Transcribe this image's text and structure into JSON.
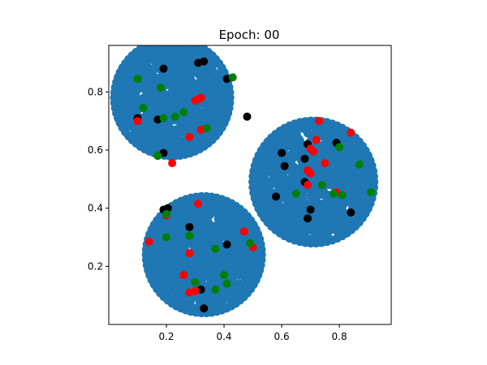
{
  "chart_data": {
    "type": "scatter",
    "title": "Epoch: 00",
    "xlabel": "",
    "ylabel": "",
    "xlim": [
      0.0,
      0.98
    ],
    "ylim": [
      0.0,
      0.96
    ],
    "xticks": [
      0.2,
      0.4,
      0.6,
      0.8
    ],
    "yticks": [
      0.2,
      0.4,
      0.6,
      0.8
    ],
    "xtick_labels": [
      "0.2",
      "0.4",
      "0.6",
      "0.8"
    ],
    "ytick_labels": [
      "0.2",
      "0.4",
      "0.6",
      "0.8"
    ],
    "grid": false,
    "legend": "none",
    "clusters": [
      {
        "center": [
          0.22,
          0.78
        ],
        "radius": 0.2
      },
      {
        "center": [
          0.71,
          0.49
        ],
        "radius": 0.21
      },
      {
        "center": [
          0.33,
          0.24
        ],
        "radius": 0.2
      }
    ],
    "series": [
      {
        "color": "#1f77b4",
        "marker_size": "large"
      },
      {
        "color": "#000000",
        "points": [
          [
            0.19,
            0.88
          ],
          [
            0.31,
            0.9
          ],
          [
            0.33,
            0.905
          ],
          [
            0.41,
            0.845
          ],
          [
            0.1,
            0.71
          ],
          [
            0.17,
            0.705
          ],
          [
            0.48,
            0.715
          ],
          [
            0.19,
            0.59
          ],
          [
            0.58,
            0.44
          ],
          [
            0.6,
            0.59
          ],
          [
            0.61,
            0.545
          ],
          [
            0.68,
            0.57
          ],
          [
            0.69,
            0.62
          ],
          [
            0.79,
            0.625
          ],
          [
            0.68,
            0.49
          ],
          [
            0.7,
            0.395
          ],
          [
            0.69,
            0.365
          ],
          [
            0.84,
            0.385
          ],
          [
            0.19,
            0.395
          ],
          [
            0.205,
            0.4
          ],
          [
            0.28,
            0.335
          ],
          [
            0.41,
            0.275
          ],
          [
            0.32,
            0.12
          ],
          [
            0.33,
            0.055
          ]
        ]
      },
      {
        "color": "#ff0000",
        "points": [
          [
            0.31,
            0.775
          ],
          [
            0.32,
            0.78
          ],
          [
            0.3,
            0.77
          ],
          [
            0.1,
            0.7
          ],
          [
            0.28,
            0.645
          ],
          [
            0.32,
            0.67
          ],
          [
            0.22,
            0.555
          ],
          [
            0.73,
            0.7
          ],
          [
            0.84,
            0.66
          ],
          [
            0.72,
            0.635
          ],
          [
            0.7,
            0.605
          ],
          [
            0.71,
            0.595
          ],
          [
            0.69,
            0.53
          ],
          [
            0.75,
            0.555
          ],
          [
            0.7,
            0.52
          ],
          [
            0.69,
            0.48
          ],
          [
            0.79,
            0.455
          ],
          [
            0.31,
            0.415
          ],
          [
            0.2,
            0.375
          ],
          [
            0.14,
            0.285
          ],
          [
            0.28,
            0.245
          ],
          [
            0.47,
            0.32
          ],
          [
            0.5,
            0.265
          ],
          [
            0.26,
            0.17
          ],
          [
            0.28,
            0.11
          ],
          [
            0.3,
            0.115
          ]
        ]
      },
      {
        "color": "#008000",
        "points": [
          [
            0.1,
            0.845
          ],
          [
            0.43,
            0.85
          ],
          [
            0.18,
            0.815
          ],
          [
            0.12,
            0.745
          ],
          [
            0.19,
            0.71
          ],
          [
            0.26,
            0.73
          ],
          [
            0.23,
            0.715
          ],
          [
            0.34,
            0.675
          ],
          [
            0.17,
            0.58
          ],
          [
            0.8,
            0.61
          ],
          [
            0.87,
            0.55
          ],
          [
            0.74,
            0.48
          ],
          [
            0.78,
            0.45
          ],
          [
            0.81,
            0.445
          ],
          [
            0.91,
            0.455
          ],
          [
            0.65,
            0.45
          ],
          [
            0.2,
            0.38
          ],
          [
            0.2,
            0.3
          ],
          [
            0.28,
            0.305
          ],
          [
            0.37,
            0.26
          ],
          [
            0.49,
            0.28
          ],
          [
            0.4,
            0.17
          ],
          [
            0.41,
            0.14
          ],
          [
            0.3,
            0.145
          ],
          [
            0.37,
            0.12
          ]
        ]
      }
    ]
  }
}
